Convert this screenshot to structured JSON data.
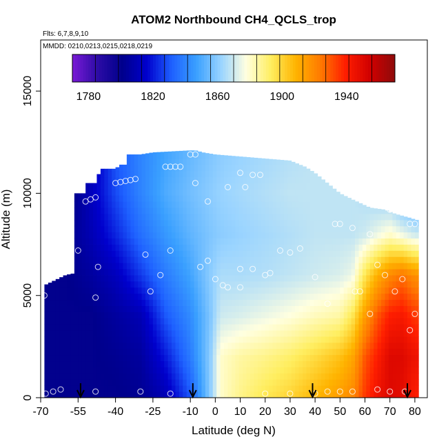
{
  "chart_data": {
    "type": "heatmap",
    "title": "ATOM2 Northbound CH4_QCLS_trop",
    "flights_label": "Flts: 6,7,8,9,10",
    "dates_label": "MMDD: 0210,0213,0215,0218,0219",
    "xlabel": "Latitude (deg N)",
    "ylabel": "Altitude (m)",
    "xlim": [
      -70,
      85
    ],
    "ylim": [
      0,
      17500
    ],
    "x_ticks": [
      -70,
      -55,
      -40,
      -25,
      -10,
      0,
      10,
      20,
      30,
      40,
      50,
      60,
      70,
      80
    ],
    "y_ticks": [
      0,
      5000,
      10000,
      15000
    ],
    "colorbar": {
      "range": [
        1770,
        1970
      ],
      "tick_values": [
        1780,
        1820,
        1860,
        1900,
        1940
      ],
      "colors": [
        "#7a1ad6",
        "#2d0ca6",
        "#00008c",
        "#0000cd",
        "#1e60ff",
        "#3aa0ff",
        "#9ad4ff",
        "#ffffe0",
        "#ffee60",
        "#ffb400",
        "#ff7a00",
        "#ff1e00",
        "#d00000",
        "#8e0b0b"
      ]
    },
    "arrows_lat": [
      -54,
      -9,
      39,
      77
    ],
    "field_grid": {
      "lat": [
        -68,
        -60,
        -50,
        -40,
        -30,
        -20,
        -10,
        -2,
        2,
        10,
        20,
        30,
        40,
        50,
        55,
        60,
        65,
        70,
        75,
        80
      ],
      "alt": [
        0,
        2000,
        4000,
        6000,
        8000,
        10000,
        12000
      ],
      "ch4": [
        [
          1800,
          1800,
          1800,
          1800,
          1802,
          1810,
          1830,
          1860,
          1880,
          1888,
          1895,
          1900,
          1908,
          1915,
          1920,
          1935,
          1945,
          1950,
          1948,
          1940
        ],
        [
          1800,
          1800,
          1800,
          1802,
          1805,
          1820,
          1838,
          1860,
          1880,
          1885,
          1888,
          1892,
          1898,
          1905,
          1912,
          1930,
          1940,
          1950,
          1950,
          1945
        ],
        [
          1800,
          1800,
          1800,
          1805,
          1810,
          1830,
          1842,
          1858,
          1870,
          1872,
          1875,
          1878,
          1882,
          1885,
          1895,
          1915,
          1930,
          1940,
          1942,
          1935
        ],
        [
          1800,
          1800,
          1805,
          1812,
          1825,
          1838,
          1848,
          1860,
          1865,
          1865,
          1866,
          1868,
          1870,
          1872,
          1875,
          1895,
          1910,
          1920,
          1925,
          1918
        ],
        [
          1800,
          1800,
          1810,
          1822,
          1835,
          1845,
          1853,
          1858,
          1860,
          1862,
          1864,
          1866,
          1868,
          1868,
          1868,
          1870,
          1875,
          1880,
          1875,
          1870
        ],
        [
          1790,
          1795,
          1812,
          1828,
          1840,
          1850,
          1856,
          1860,
          1862,
          1864,
          1866,
          1868,
          1868,
          1868,
          1868,
          1866,
          1862,
          1858,
          1850,
          1845
        ],
        [
          1780,
          1790,
          1810,
          1830,
          1840,
          1848,
          1854,
          1858,
          1860,
          1862,
          1864,
          1866,
          1868,
          1868,
          1866,
          1862,
          1858,
          1855,
          1850,
          1845
        ]
      ]
    },
    "obs_points": [
      [
        -68.5,
        5000
      ],
      [
        -68,
        200
      ],
      [
        -65,
        300
      ],
      [
        -62,
        400
      ],
      [
        -52,
        9600
      ],
      [
        -50,
        9700
      ],
      [
        -48,
        9800
      ],
      [
        -55,
        7200
      ],
      [
        -47,
        6400
      ],
      [
        -48,
        4900
      ],
      [
        -48,
        300
      ],
      [
        -40,
        10500
      ],
      [
        -38,
        10550
      ],
      [
        -36,
        10600
      ],
      [
        -34,
        10650
      ],
      [
        -32,
        10700
      ],
      [
        -28,
        7000
      ],
      [
        -26,
        5200
      ],
      [
        -30,
        300
      ],
      [
        -20,
        11300
      ],
      [
        -18,
        11300
      ],
      [
        -16,
        11300
      ],
      [
        -14,
        11300
      ],
      [
        -10,
        11900
      ],
      [
        -8,
        11900
      ],
      [
        -18,
        7200
      ],
      [
        -22,
        6000
      ],
      [
        -18,
        200
      ],
      [
        -8,
        10500
      ],
      [
        -3,
        9600
      ],
      [
        5,
        10300
      ],
      [
        12,
        10300
      ],
      [
        10,
        11000
      ],
      [
        -3,
        6700
      ],
      [
        -6,
        6400
      ],
      [
        0,
        5800
      ],
      [
        3,
        5500
      ],
      [
        10,
        6300
      ],
      [
        15,
        6300
      ],
      [
        20,
        6000
      ],
      [
        15,
        10900
      ],
      [
        18,
        10900
      ],
      [
        25,
        11900
      ],
      [
        30,
        11800
      ],
      [
        36,
        11900
      ],
      [
        40,
        5900
      ],
      [
        30,
        7100
      ],
      [
        34,
        7300
      ],
      [
        26,
        7200
      ],
      [
        22,
        6100
      ],
      [
        10,
        5400
      ],
      [
        5,
        5400
      ],
      [
        20,
        200
      ],
      [
        30,
        200
      ],
      [
        40,
        200
      ],
      [
        45,
        4600
      ],
      [
        48,
        8500
      ],
      [
        50,
        8500
      ],
      [
        55,
        8300
      ],
      [
        56,
        5200
      ],
      [
        58,
        5200
      ],
      [
        62,
        4100
      ],
      [
        62,
        8000
      ],
      [
        65,
        6500
      ],
      [
        68,
        6000
      ],
      [
        72,
        5200
      ],
      [
        75,
        5800
      ],
      [
        70,
        9200
      ],
      [
        75,
        9400
      ],
      [
        78,
        8500
      ],
      [
        80,
        8500
      ],
      [
        80,
        4100
      ],
      [
        78,
        3300
      ],
      [
        76,
        300
      ],
      [
        70,
        300
      ],
      [
        65,
        400
      ],
      [
        55,
        300
      ],
      [
        50,
        300
      ],
      [
        45,
        300
      ]
    ]
  }
}
